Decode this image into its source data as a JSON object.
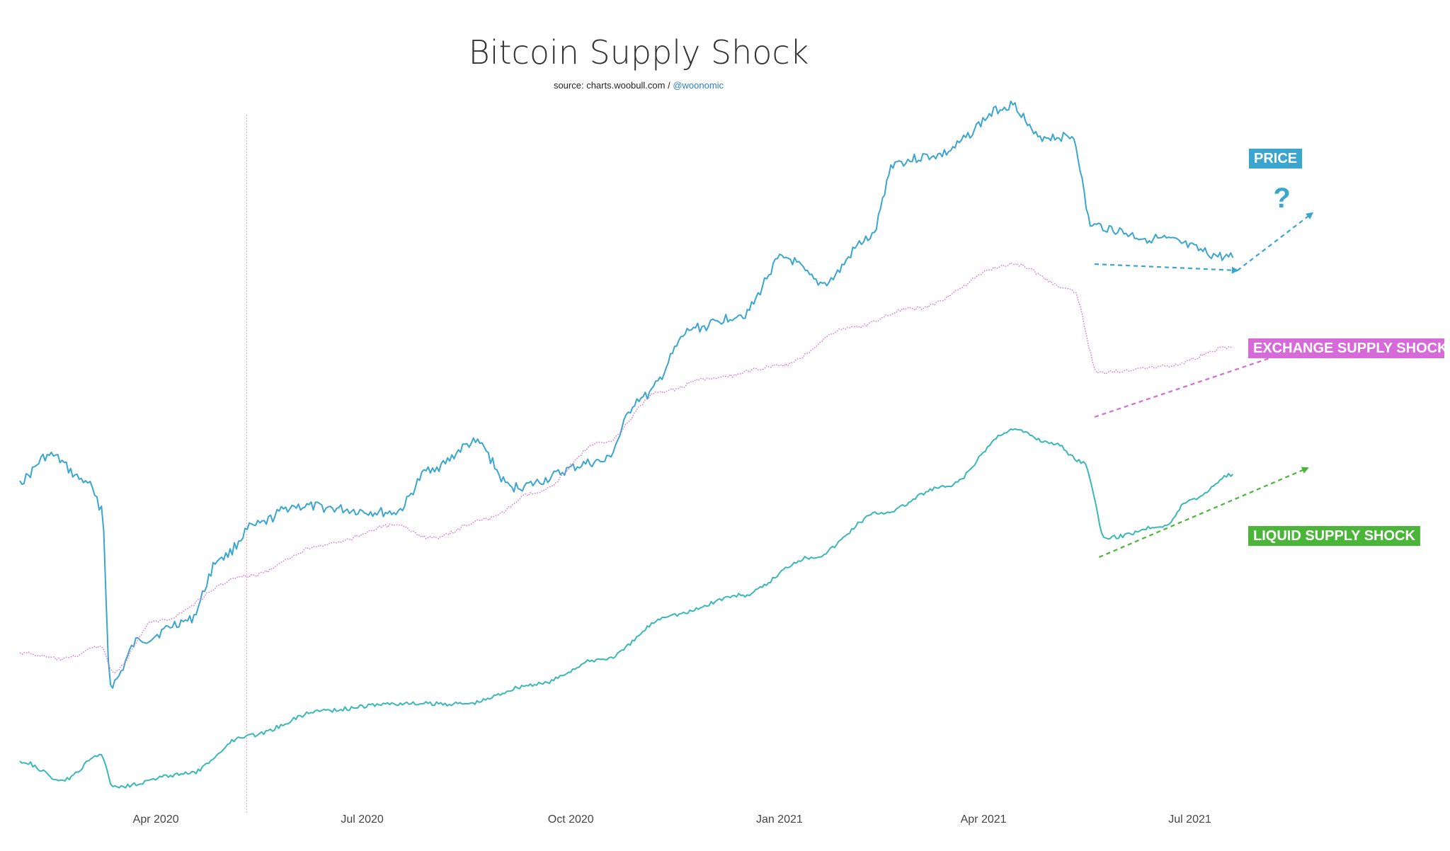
{
  "chart_data": {
    "type": "line",
    "title": "Bitcoin Supply Shock",
    "source_prefix": "source: charts.woobull.com / ",
    "source_handle": "@woonomic",
    "x_ticks": [
      "Apr 2020",
      "Jul 2020",
      "Oct 2020",
      "Jan 2021",
      "Apr 2021",
      "Jul 2021"
    ],
    "xlim": [
      "2020-02-01",
      "2021-10-15"
    ],
    "yaxis": "no visible y-axis; three independently scaled series stacked vertically",
    "marker_line": {
      "date": "2020-05-11",
      "note": "vertical dotted reference line (halving)"
    },
    "series": [
      {
        "name": "PRICE",
        "label": "PRICE",
        "color": "#3aa6d0",
        "style": "solid",
        "anchors": [
          [
            "2020-02-01",
            0.54
          ],
          [
            "2020-02-14",
            0.58
          ],
          [
            "2020-03-01",
            0.54
          ],
          [
            "2020-03-08",
            0.5
          ],
          [
            "2020-03-12",
            0.22
          ],
          [
            "2020-03-25",
            0.29
          ],
          [
            "2020-04-15",
            0.32
          ],
          [
            "2020-04-30",
            0.42
          ],
          [
            "2020-05-15",
            0.47
          ],
          [
            "2020-06-01",
            0.5
          ],
          [
            "2020-07-15",
            0.49
          ],
          [
            "2020-08-01",
            0.56
          ],
          [
            "2020-08-20",
            0.6
          ],
          [
            "2020-09-05",
            0.53
          ],
          [
            "2020-10-15",
            0.57
          ],
          [
            "2020-11-01",
            0.67
          ],
          [
            "2020-11-25",
            0.78
          ],
          [
            "2020-12-15",
            0.8
          ],
          [
            "2021-01-03",
            0.89
          ],
          [
            "2021-01-20",
            0.85
          ],
          [
            "2021-02-10",
            0.92
          ],
          [
            "2021-02-21",
            1.04
          ],
          [
            "2021-03-10",
            1.05
          ],
          [
            "2021-04-14",
            1.13
          ],
          [
            "2021-04-25",
            1.08
          ],
          [
            "2021-05-10",
            1.08
          ],
          [
            "2021-05-19",
            0.94
          ],
          [
            "2021-06-15",
            0.92
          ],
          [
            "2021-07-20",
            0.89
          ]
        ]
      },
      {
        "name": "EXCHANGE SUPPLY SHOCK",
        "label": "EXCHANGE SUPPLY SHOCK",
        "color": "#d66ad8",
        "style": "dotted",
        "anchors": [
          [
            "2020-02-01",
            0.27
          ],
          [
            "2020-02-20",
            0.26
          ],
          [
            "2020-03-08",
            0.28
          ],
          [
            "2020-03-13",
            0.24
          ],
          [
            "2020-04-01",
            0.32
          ],
          [
            "2020-05-11",
            0.39
          ],
          [
            "2020-06-15",
            0.44
          ],
          [
            "2020-07-15",
            0.47
          ],
          [
            "2020-08-01",
            0.45
          ],
          [
            "2020-08-25",
            0.48
          ],
          [
            "2020-09-15",
            0.52
          ],
          [
            "2020-10-15",
            0.6
          ],
          [
            "2020-11-10",
            0.68
          ],
          [
            "2020-12-01",
            0.7
          ],
          [
            "2021-01-01",
            0.72
          ],
          [
            "2021-02-01",
            0.78
          ],
          [
            "2021-03-01",
            0.81
          ],
          [
            "2021-04-14",
            0.88
          ],
          [
            "2021-05-10",
            0.84
          ],
          [
            "2021-05-22",
            0.71
          ],
          [
            "2021-06-20",
            0.72
          ],
          [
            "2021-07-20",
            0.75
          ]
        ]
      },
      {
        "name": "LIQUID SUPPLY SHOCK",
        "label": "LIQUID SUPPLY SHOCK",
        "color": "#3ab8b8",
        "style": "solid",
        "anchors": [
          [
            "2020-02-01",
            0.1
          ],
          [
            "2020-02-20",
            0.07
          ],
          [
            "2020-03-08",
            0.11
          ],
          [
            "2020-03-13",
            0.06
          ],
          [
            "2020-04-15",
            0.08
          ],
          [
            "2020-05-11",
            0.14
          ],
          [
            "2020-06-15",
            0.18
          ],
          [
            "2020-07-15",
            0.19
          ],
          [
            "2020-08-15",
            0.19
          ],
          [
            "2020-09-15",
            0.22
          ],
          [
            "2020-10-15",
            0.26
          ],
          [
            "2020-11-15",
            0.33
          ],
          [
            "2020-12-15",
            0.36
          ],
          [
            "2021-01-15",
            0.42
          ],
          [
            "2021-02-15",
            0.49
          ],
          [
            "2021-03-15",
            0.53
          ],
          [
            "2021-04-14",
            0.62
          ],
          [
            "2021-05-01",
            0.6
          ],
          [
            "2021-05-15",
            0.57
          ],
          [
            "2021-05-25",
            0.45
          ],
          [
            "2021-06-20",
            0.47
          ],
          [
            "2021-07-01",
            0.51
          ],
          [
            "2021-07-20",
            0.55
          ]
        ]
      }
    ],
    "annotations": [
      {
        "for": "PRICE",
        "arrow_from": [
          "2021-05-20",
          0.88
        ],
        "arrow_to": [
          "2021-07-22",
          0.87
        ],
        "direction": "down",
        "color": "#3aa6d0"
      },
      {
        "for": "PRICE",
        "arrow_from": [
          "2021-07-22",
          0.87
        ],
        "arrow_to": [
          "2021-08-24",
          0.96
        ],
        "direction": "up",
        "color": "#3aa6d0",
        "question_mark": "?"
      },
      {
        "for": "EXCHANGE SUPPLY SHOCK",
        "arrow_from": [
          "2021-05-20",
          0.64
        ],
        "arrow_to": [
          "2021-08-20",
          0.75
        ],
        "direction": "up",
        "color": "#d66ad8"
      },
      {
        "for": "LIQUID SUPPLY SHOCK",
        "arrow_from": [
          "2021-05-22",
          0.42
        ],
        "arrow_to": [
          "2021-08-22",
          0.56
        ],
        "direction": "up",
        "color": "#4bb53a"
      }
    ],
    "tags": [
      {
        "text": "PRICE",
        "color": "#3aa6d0"
      },
      {
        "text": "EXCHANGE SUPPLY SHOCK",
        "color": "#d66ad8"
      },
      {
        "text": "LIQUID SUPPLY SHOCK",
        "color": "#4bb53a"
      }
    ]
  }
}
